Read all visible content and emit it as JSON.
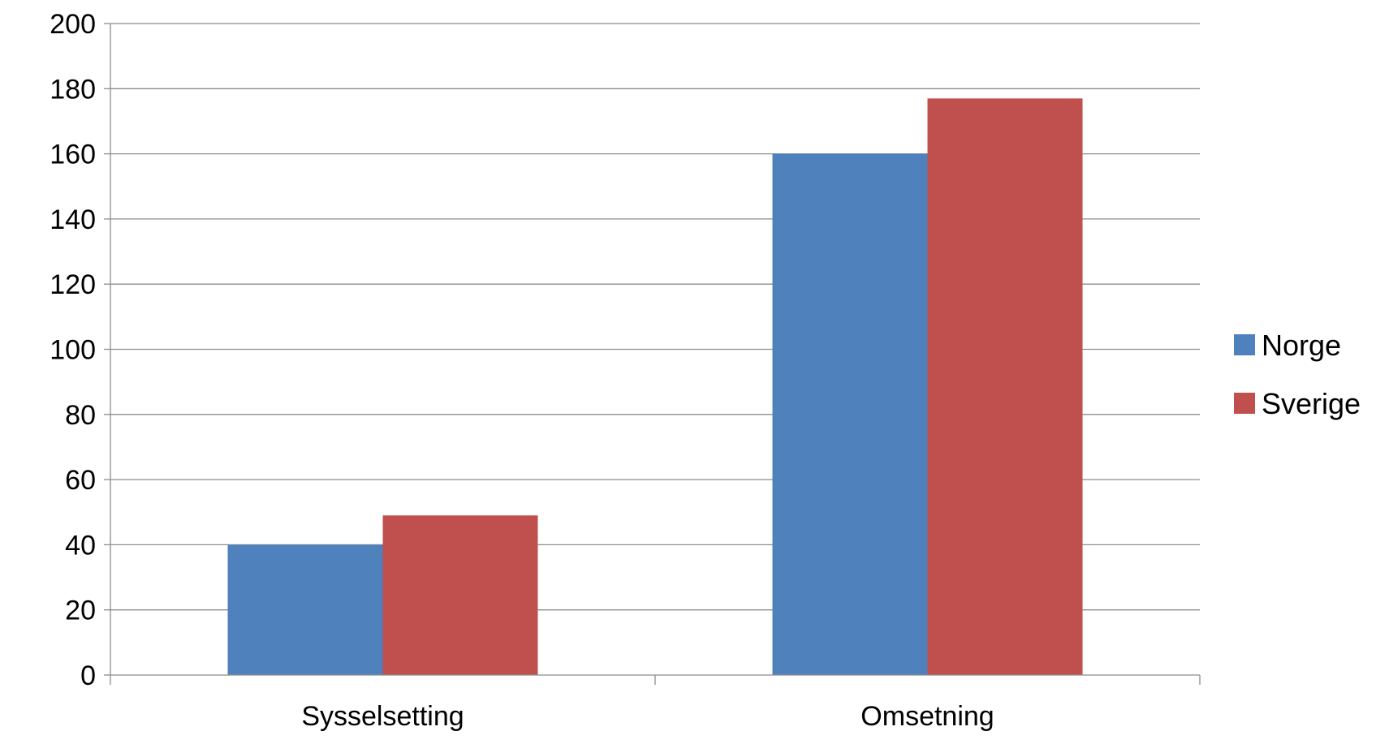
{
  "chart_data": {
    "type": "bar",
    "categories": [
      "Sysselsetting",
      "Omsetning"
    ],
    "series": [
      {
        "name": "Norge",
        "values": [
          40,
          160
        ],
        "color": "#4F81BD"
      },
      {
        "name": "Sverige",
        "values": [
          49,
          177
        ],
        "color": "#C0504D"
      }
    ],
    "ylim": [
      0,
      200
    ],
    "yticks": [
      0,
      20,
      40,
      60,
      80,
      100,
      120,
      140,
      160,
      180,
      200
    ],
    "grid": true,
    "legend_position": "right"
  }
}
